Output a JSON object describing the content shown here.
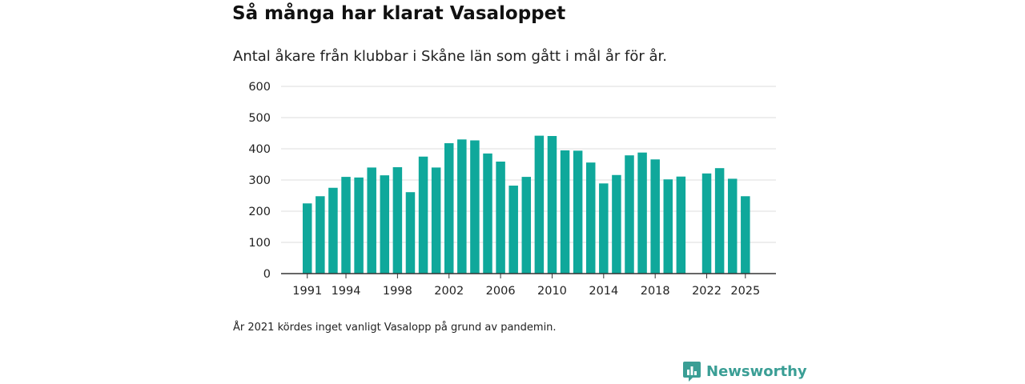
{
  "title": "Så många har klarat Vasaloppet",
  "subtitle": "Antal åkare från klubbar i Skåne län som gått i mål år för år.",
  "note": "År 2021 kördes inget vanligt Vasalopp på grund av pandemin.",
  "brand": {
    "name": "Newsworthy",
    "color": "#3a9e95",
    "icon": "newsworthy-chart-bubble-icon"
  },
  "colors": {
    "bar": "#0fa89b",
    "grid": "#dddddd",
    "axis": "#333333"
  },
  "chart_data": {
    "type": "bar",
    "title": "Så många har klarat Vasaloppet",
    "xlabel": "",
    "ylabel": "",
    "ylim": [
      0,
      600
    ],
    "yticks": [
      0,
      100,
      200,
      300,
      400,
      500,
      600
    ],
    "xtick_labels": [
      "1991",
      "1994",
      "1998",
      "2002",
      "2006",
      "2010",
      "2014",
      "2018",
      "2022",
      "2025"
    ],
    "grid": true,
    "x": [
      1991,
      1992,
      1993,
      1994,
      1995,
      1996,
      1997,
      1998,
      1999,
      2000,
      2001,
      2002,
      2003,
      2004,
      2005,
      2006,
      2007,
      2008,
      2009,
      2010,
      2011,
      2012,
      2013,
      2014,
      2015,
      2016,
      2017,
      2018,
      2019,
      2020,
      2021,
      2022,
      2023,
      2024,
      2025
    ],
    "values": [
      225,
      248,
      275,
      310,
      308,
      340,
      315,
      341,
      261,
      375,
      340,
      418,
      430,
      427,
      385,
      359,
      282,
      310,
      442,
      441,
      395,
      394,
      356,
      289,
      316,
      379,
      388,
      366,
      302,
      311,
      null,
      321,
      338,
      304,
      248
    ]
  }
}
